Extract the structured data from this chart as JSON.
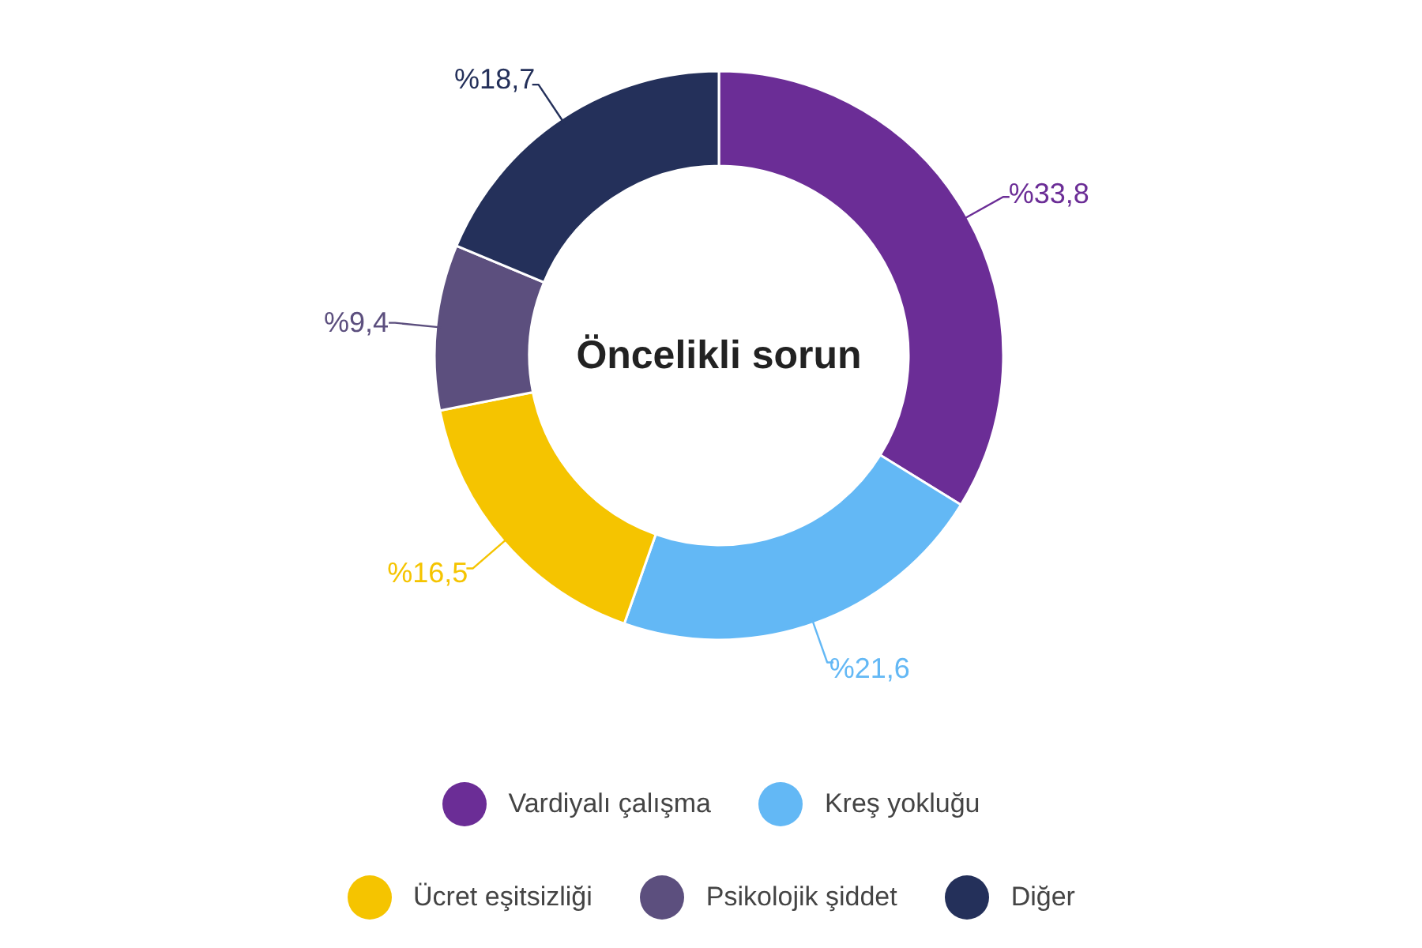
{
  "chart_data": {
    "type": "donut",
    "title": "Öncelikli sorun",
    "categories": [
      "Vardiyalı çalışma",
      "Kreş yokluğu",
      "Ücret eşitsizliği",
      "Psikolojik şiddet",
      "Diğer"
    ],
    "values": [
      33.8,
      21.6,
      16.5,
      9.4,
      18.7
    ],
    "colors": [
      "#6b2d96",
      "#63b8f5",
      "#f5c400",
      "#5c4f7e",
      "#24305a"
    ],
    "value_labels": [
      "%33,8",
      "%21,6",
      "%16,5",
      "%9,4",
      "%18,7"
    ],
    "legend": "bottom"
  }
}
